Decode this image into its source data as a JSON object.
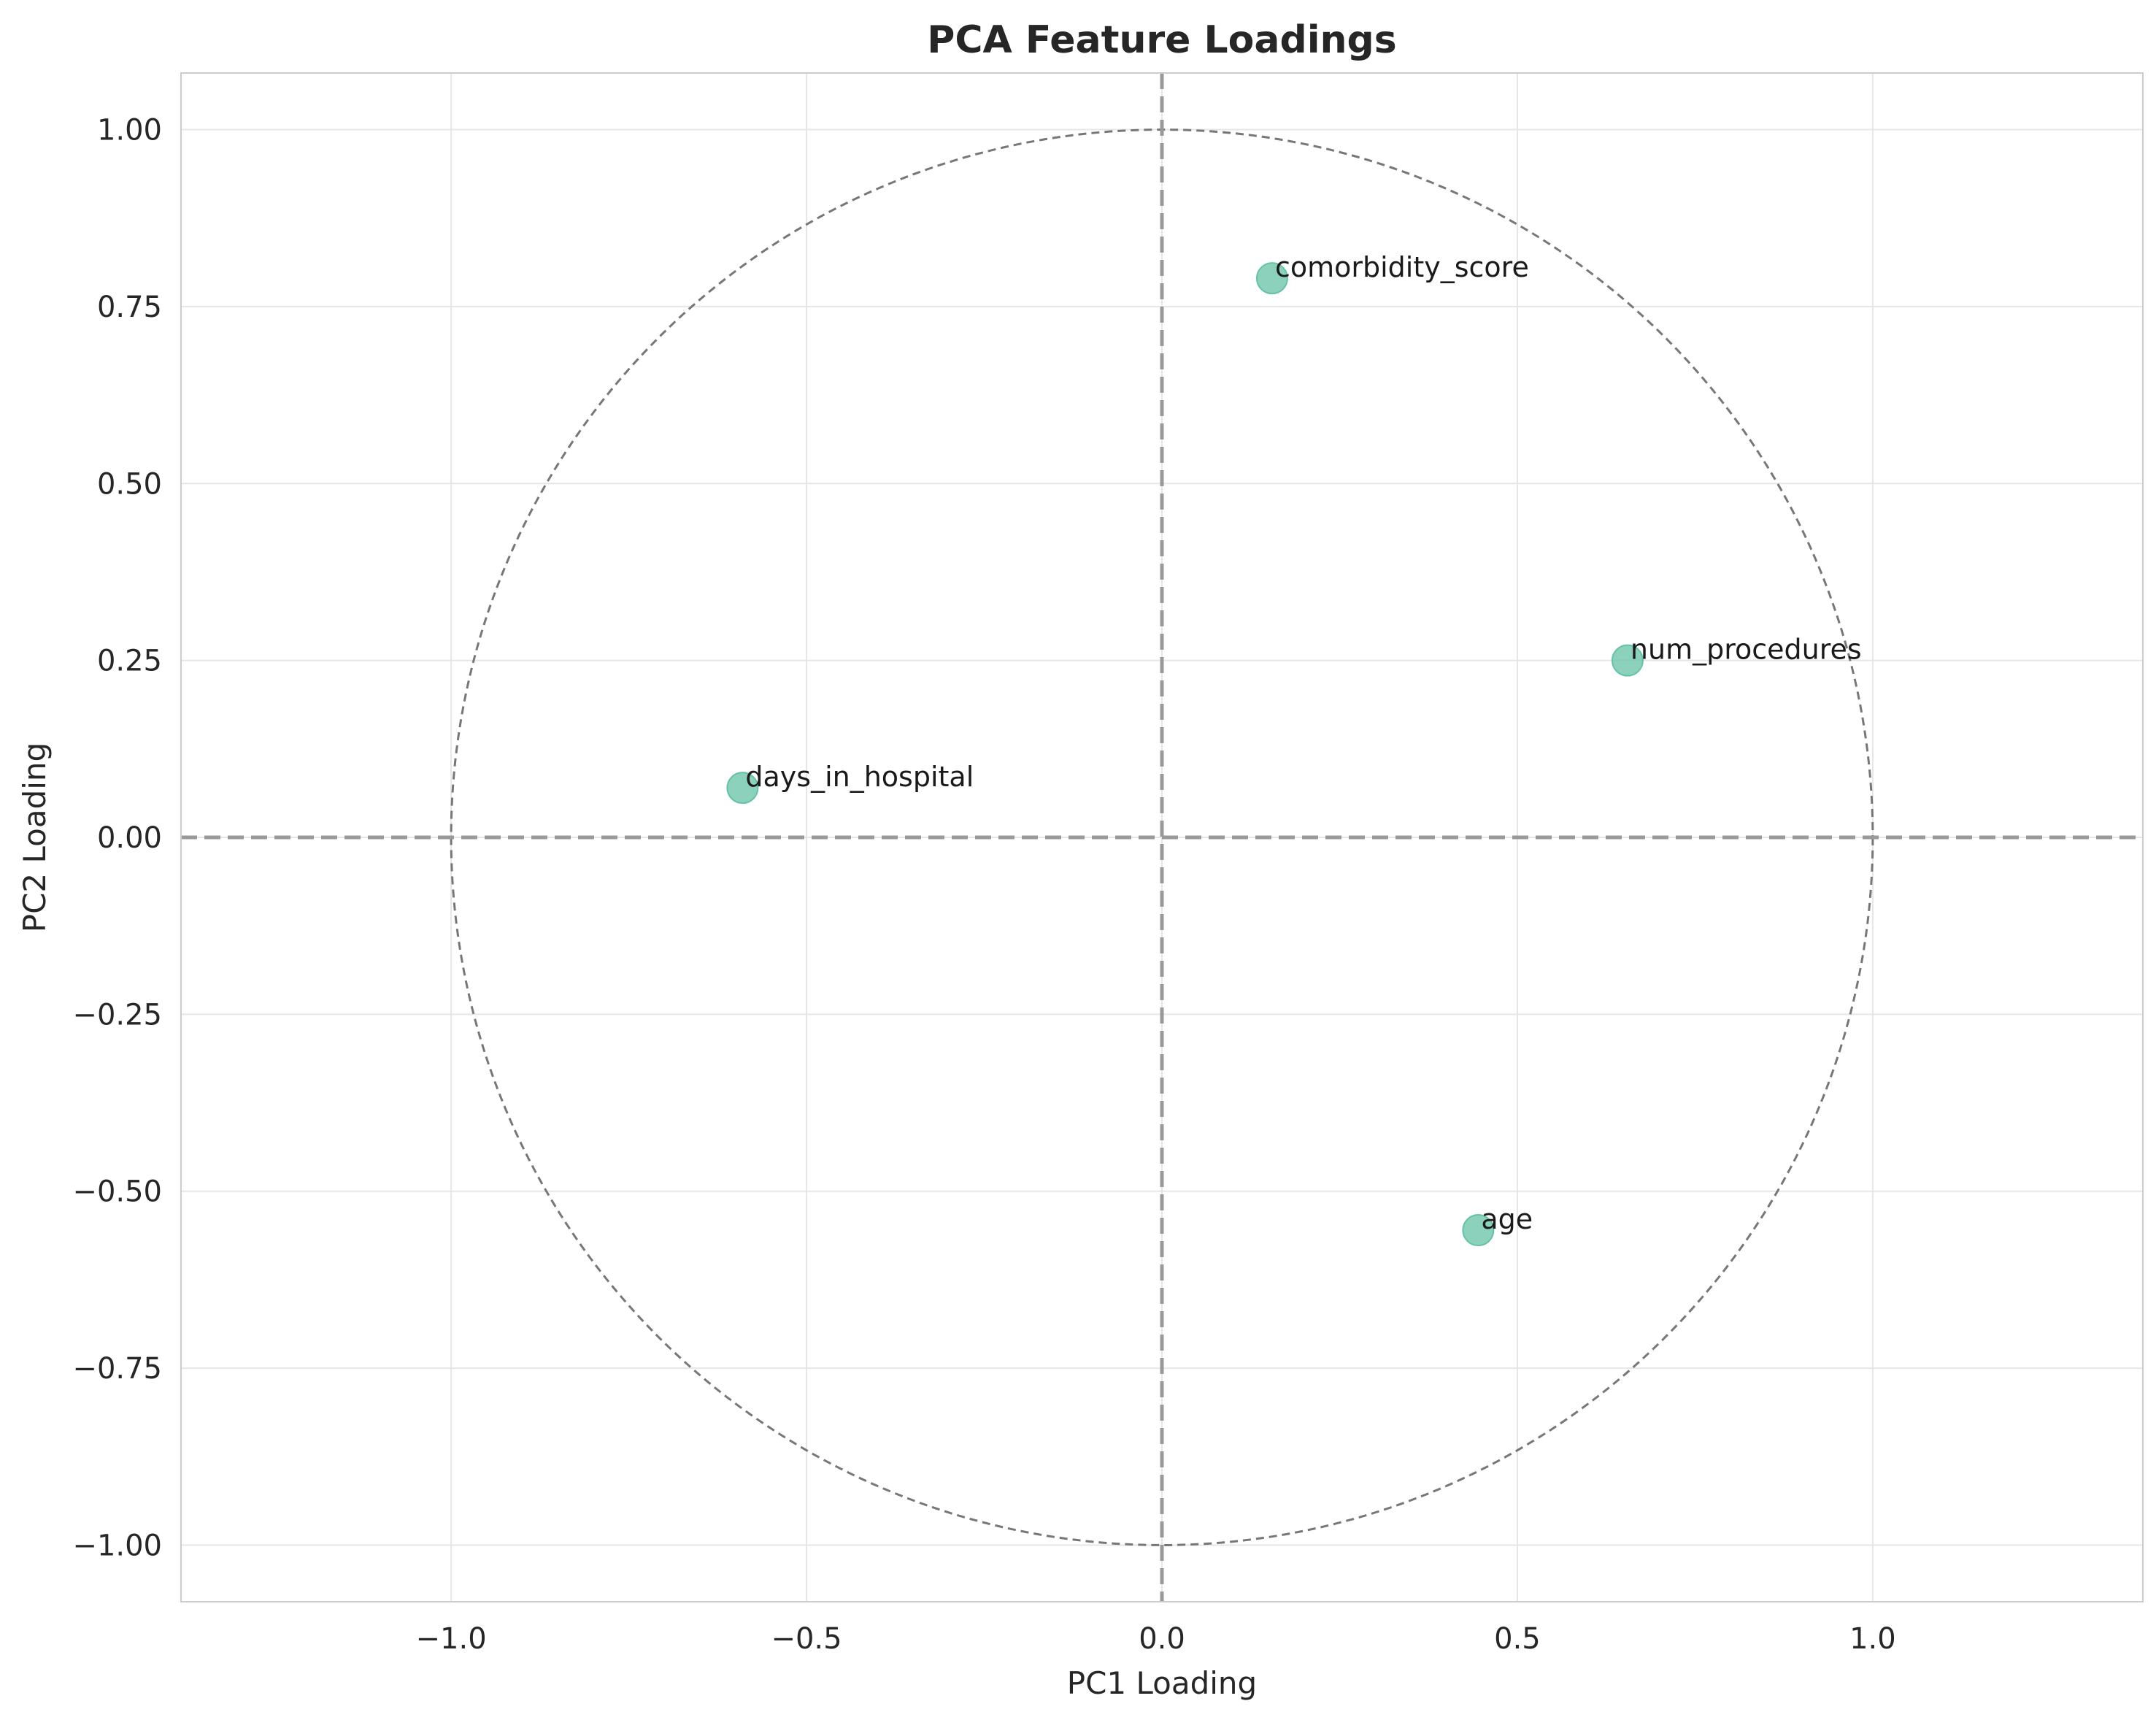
{
  "chart_data": {
    "type": "scatter",
    "title": "PCA Feature Loadings",
    "xlabel": "PC1 Loading",
    "ylabel": "PC2 Loading",
    "xlim": [
      -1.38,
      1.38
    ],
    "ylim": [
      -1.08,
      1.08
    ],
    "xticks": [
      -1.0,
      -0.5,
      0.0,
      0.5,
      1.0
    ],
    "xtick_labels": [
      "−1.0",
      "−0.5",
      "0.0",
      "0.5",
      "1.0"
    ],
    "yticks": [
      1.0,
      0.75,
      0.5,
      0.25,
      0.0,
      -0.25,
      -0.5,
      -0.75,
      -1.0
    ],
    "ytick_labels": [
      "1.00",
      "0.75",
      "0.50",
      "0.25",
      "0.00",
      "−0.25",
      "−0.50",
      "−0.75",
      "−1.00"
    ],
    "grid": true,
    "legend": "none",
    "unit_circle": {
      "radius": 1.0,
      "style": "dashed"
    },
    "reference_lines": {
      "x": 0,
      "y": 0,
      "style": "dashed"
    },
    "points": [
      {
        "label": "comorbidity_score",
        "x": 0.155,
        "y": 0.79
      },
      {
        "label": "num_procedures",
        "x": 0.655,
        "y": 0.25
      },
      {
        "label": "days_in_hospital",
        "x": -0.59,
        "y": 0.07
      },
      {
        "label": "age",
        "x": 0.445,
        "y": -0.555
      }
    ],
    "colors": {
      "point": "#66c2a5",
      "circle": "#777777",
      "reference": "#999999",
      "grid": "#e6e6e6",
      "frame": "#cccccc"
    }
  }
}
